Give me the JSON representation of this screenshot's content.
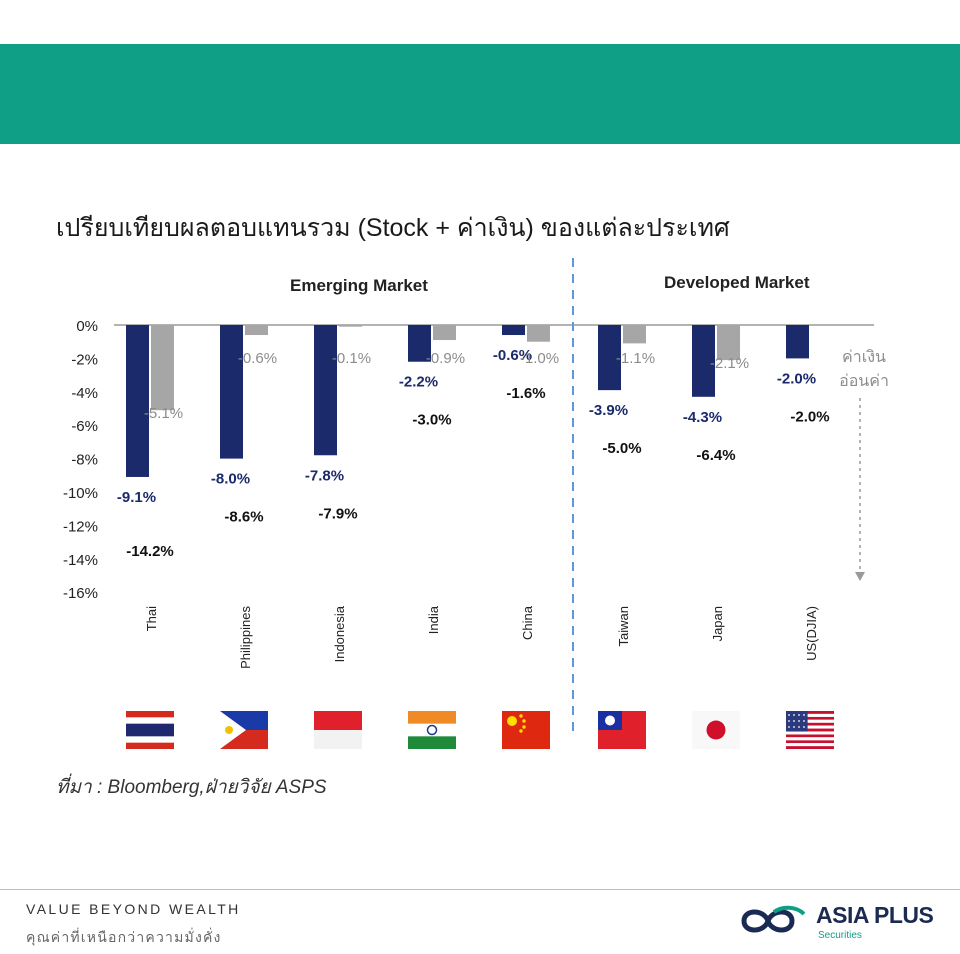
{
  "title": "เปรียบเทียบผลตอบแทนรวม (Stock + ค่าเงิน) ของแต่ละประเทศ",
  "sections": {
    "emerging": "Emerging Market",
    "developed": "Developed Market"
  },
  "currency_note": [
    "ค่าเงิน",
    "อ่อนค่า"
  ],
  "source": "ที่มา : Bloomberg,ฝ่ายวิจัย ASPS",
  "footer": {
    "slogan_en": "VALUE BEYOND WEALTH",
    "slogan_th": "คุณค่าที่เหนือกว่าความมั่งคั่ง"
  },
  "logo": {
    "name": "ASIA PLUS",
    "sub": "Securities"
  },
  "colors": {
    "band": "#0e9f86",
    "stock": "#1b2a6b",
    "currency": "#a6a6a6",
    "divider": "#5b9bd5"
  },
  "chart_data": {
    "type": "bar",
    "categories": [
      "Thai",
      "Philippines",
      "Indonesia",
      "India",
      "China",
      "Taiwan",
      "Japan",
      "US(DJIA)"
    ],
    "ytick_labels": [
      "0%",
      "-2%",
      "-4%",
      "-6%",
      "-8%",
      "-10%",
      "-12%",
      "-14%",
      "-16%"
    ],
    "ylim": [
      -16,
      0
    ],
    "series": [
      {
        "values": [
          -9.1,
          -8.0,
          -7.8,
          -2.2,
          -0.6,
          -3.9,
          -4.3,
          -2.0
        ],
        "labels": [
          "-9.1%",
          "-8.0%",
          "-7.8%",
          "-2.2%",
          "-0.6%",
          "-3.9%",
          "-4.3%",
          "-2.0%"
        ]
      },
      {
        "values": [
          -5.1,
          -0.6,
          -0.1,
          -0.9,
          -1.0,
          -1.1,
          -2.1,
          0
        ],
        "labels": [
          "-5.1%",
          "-0.6%",
          "-0.1%",
          "-0.9%",
          "-1.0%",
          "-1.1%",
          "-2.1%",
          ""
        ]
      }
    ],
    "totals": {
      "values": [
        -14.2,
        -8.6,
        -7.9,
        -3.0,
        -1.6,
        -5.0,
        -6.4,
        -2.0
      ],
      "labels": [
        "-14.2%",
        "-8.6%",
        "-7.9%",
        "-3.0%",
        "-1.6%",
        "-5.0%",
        "-6.4%",
        "-2.0%"
      ]
    },
    "groups": [
      {
        "label": "Emerging Market",
        "categories": [
          "Thai",
          "Philippines",
          "Indonesia",
          "India",
          "China"
        ]
      },
      {
        "label": "Developed Market",
        "categories": [
          "Taiwan",
          "Japan",
          "US(DJIA)"
        ]
      }
    ],
    "flags": [
      "thailand-flag",
      "philippines-flag",
      "indonesia-flag",
      "india-flag",
      "china-flag",
      "taiwan-flag",
      "japan-flag",
      "usa-flag"
    ],
    "grid": false
  }
}
